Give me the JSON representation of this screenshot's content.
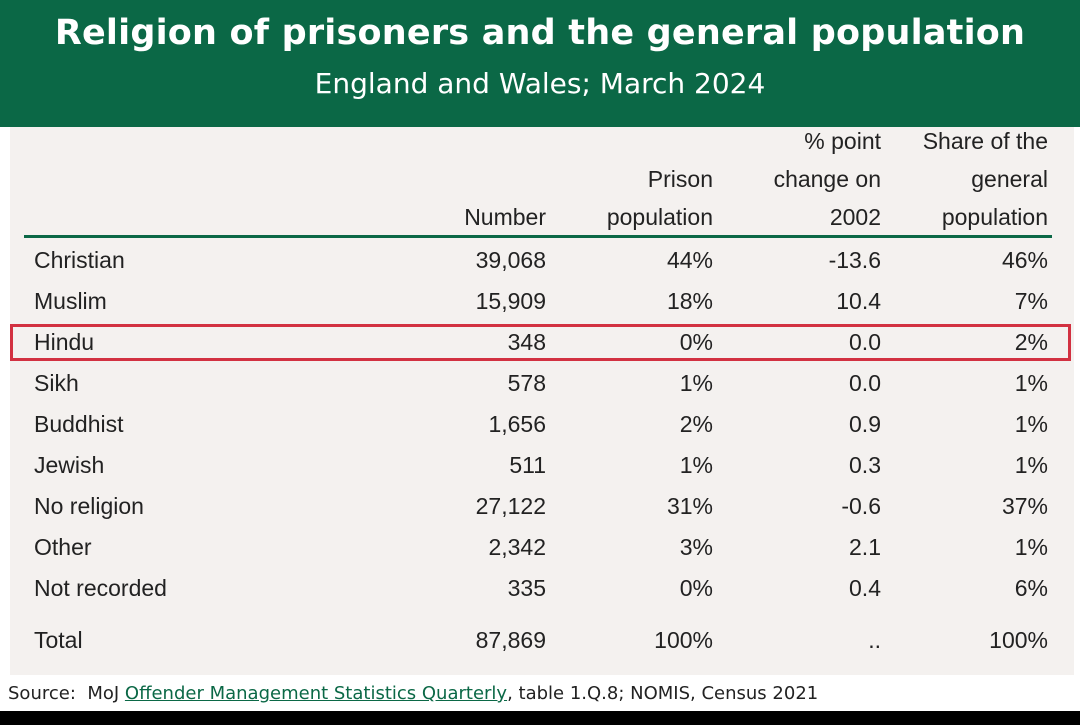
{
  "chart_data": {
    "type": "table",
    "title": "Religion of prisoners and the general population",
    "subtitle": "England and Wales; March 2024",
    "columns": [
      {
        "key": "religion",
        "lines": [
          ""
        ]
      },
      {
        "key": "number",
        "lines": [
          "Number"
        ]
      },
      {
        "key": "prison_population",
        "lines": [
          "Prison",
          "population"
        ]
      },
      {
        "key": "pp_change",
        "lines": [
          "% point",
          "change on",
          "2002"
        ]
      },
      {
        "key": "general_share",
        "lines": [
          "Share of the",
          "general",
          "population"
        ]
      }
    ],
    "rows": [
      {
        "religion": "Christian",
        "number": "39,068",
        "prison_population": "44%",
        "pp_change": "-13.6",
        "general_share": "46%",
        "highlighted": false
      },
      {
        "religion": "Muslim",
        "number": "15,909",
        "prison_population": "18%",
        "pp_change": "10.4",
        "general_share": "7%",
        "highlighted": false
      },
      {
        "religion": "Hindu",
        "number": "348",
        "prison_population": "0%",
        "pp_change": "0.0",
        "general_share": "2%",
        "highlighted": true
      },
      {
        "religion": "Sikh",
        "number": "578",
        "prison_population": "1%",
        "pp_change": "0.0",
        "general_share": "1%",
        "highlighted": false
      },
      {
        "religion": "Buddhist",
        "number": "1,656",
        "prison_population": "2%",
        "pp_change": "0.9",
        "general_share": "1%",
        "highlighted": false
      },
      {
        "religion": "Jewish",
        "number": "511",
        "prison_population": "1%",
        "pp_change": "0.3",
        "general_share": "1%",
        "highlighted": false
      },
      {
        "religion": "No religion",
        "number": "27,122",
        "prison_population": "31%",
        "pp_change": "-0.6",
        "general_share": "37%",
        "highlighted": false
      },
      {
        "religion": "Other",
        "number": "2,342",
        "prison_population": "3%",
        "pp_change": "2.1",
        "general_share": "1%",
        "highlighted": false
      },
      {
        "religion": "Not recorded",
        "number": "335",
        "prison_population": "0%",
        "pp_change": "0.4",
        "general_share": "6%",
        "highlighted": false
      }
    ],
    "total": {
      "religion": "Total",
      "number": "87,869",
      "prison_population": "100%",
      "pp_change": "..",
      "general_share": "100%"
    }
  },
  "footer": {
    "prefix": "Source:  MoJ ",
    "link_text": "Offender Management Statistics Quarterly",
    "suffix": ", table 1.Q.8; NOMIS, Census 2021"
  },
  "colors": {
    "header_green": "#0b6846",
    "highlight_red": "#d23141",
    "table_bg": "#f4f1ef"
  }
}
